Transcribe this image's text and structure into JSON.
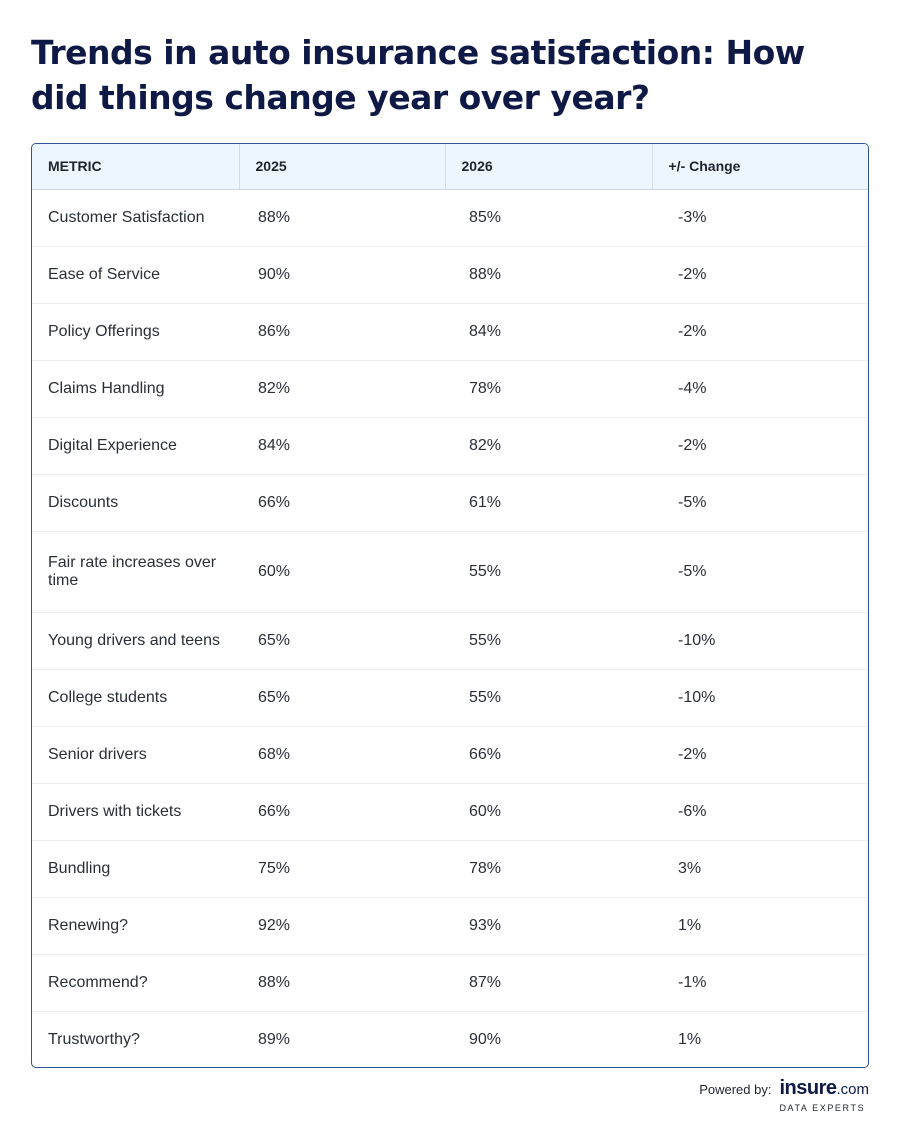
{
  "title": "Trends in auto insurance satisfaction: How did things change year over year?",
  "chart_data": {
    "type": "table",
    "columns": [
      "METRIC",
      "2025",
      "2026",
      "+/- Change"
    ],
    "rows": [
      [
        "Customer Satisfaction",
        "88%",
        "85%",
        "-3%"
      ],
      [
        "Ease of Service",
        "90%",
        "88%",
        "-2%"
      ],
      [
        "Policy Offerings",
        "86%",
        "84%",
        "-2%"
      ],
      [
        "Claims Handling",
        "82%",
        "78%",
        "-4%"
      ],
      [
        "Digital Experience",
        "84%",
        "82%",
        "-2%"
      ],
      [
        "Discounts",
        "66%",
        "61%",
        "-5%"
      ],
      [
        "Fair rate increases over time",
        "60%",
        "55%",
        "-5%"
      ],
      [
        "Young drivers and teens",
        "65%",
        "55%",
        "-10%"
      ],
      [
        "College students",
        "65%",
        "55%",
        "-10%"
      ],
      [
        "Senior drivers",
        "68%",
        "66%",
        "-2%"
      ],
      [
        "Drivers with tickets",
        "66%",
        "60%",
        "-6%"
      ],
      [
        "Bundling",
        "75%",
        "78%",
        "3%"
      ],
      [
        "Renewing?",
        "92%",
        "93%",
        "1%"
      ],
      [
        "Recommend?",
        "88%",
        "87%",
        "-1%"
      ],
      [
        "Trustworthy?",
        "89%",
        "90%",
        "1%"
      ]
    ]
  },
  "footer": {
    "powered_by": "Powered by:",
    "logo_name": "insure",
    "logo_tld": ".com",
    "logo_tagline": "DATA EXPERTS"
  }
}
